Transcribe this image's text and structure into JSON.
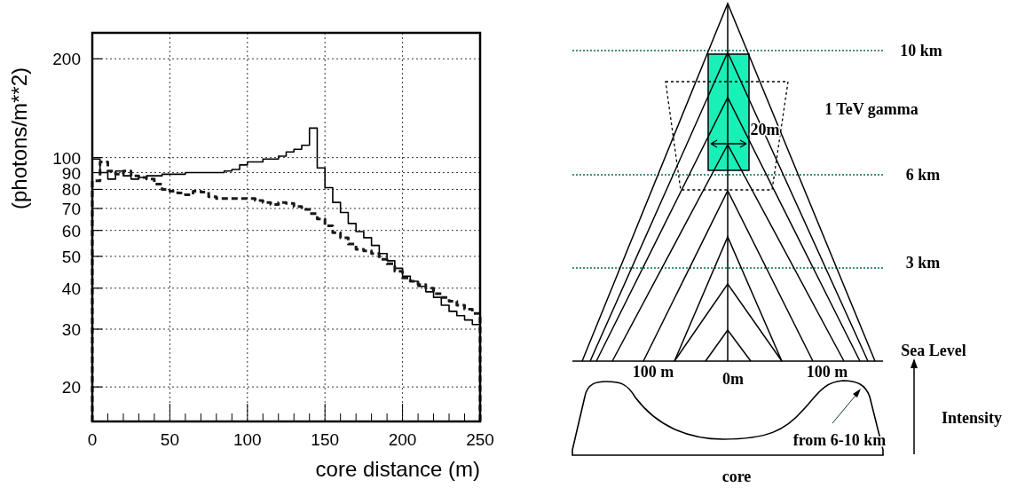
{
  "chart_data": [
    {
      "type": "histogram",
      "xlabel": "core distance (m)",
      "ylabel": "(photons/m**2)",
      "log": "y",
      "grid": true,
      "bins": [
        0,
        5,
        10,
        15,
        20,
        25,
        30,
        35,
        40,
        45,
        50,
        55,
        60,
        65,
        70,
        75,
        80,
        85,
        90,
        95,
        100,
        105,
        110,
        115,
        120,
        125,
        130,
        135,
        140,
        145,
        150,
        155,
        160,
        165,
        170,
        175,
        180,
        185,
        190,
        195,
        200,
        205,
        210,
        215,
        220,
        225,
        230,
        235,
        240,
        245,
        250
      ],
      "series": [
        {
          "line_style": "solid",
          "color": "#000000",
          "values": [
            99,
            90,
            86,
            91,
            88,
            86,
            87,
            88,
            88,
            89,
            89,
            89,
            90,
            90,
            90,
            90,
            90,
            91,
            92,
            95,
            97,
            97,
            99,
            99,
            101,
            104,
            106,
            109,
            123,
            93,
            81,
            73,
            68,
            63,
            59.5,
            57,
            54,
            51,
            48.5,
            46,
            43.5,
            42,
            40.5,
            39,
            37.5,
            35.5,
            34,
            33,
            32,
            31
          ]
        },
        {
          "line_style": "dashed",
          "color": "#1a1a1a",
          "values": [
            85,
            97,
            91,
            89,
            91,
            88,
            87,
            86,
            83,
            80,
            79,
            78,
            77,
            79,
            78.5,
            76,
            75,
            75,
            75,
            75,
            75,
            74,
            73,
            72,
            73,
            72.5,
            71,
            69.5,
            67.5,
            65,
            62,
            59,
            57,
            54.5,
            52.5,
            52,
            51,
            49,
            47.5,
            45,
            43,
            42,
            41,
            40,
            38.5,
            37.5,
            36.5,
            35.5,
            34.5,
            33.5
          ]
        }
      ],
      "xlim": [
        0,
        250
      ],
      "ylim": [
        15.7,
        240
      ],
      "xticks": [
        0,
        {
          "value": 10,
          "label": null
        },
        {
          "value": 20,
          "label": null
        },
        {
          "value": 30,
          "label": null
        },
        {
          "value": 40,
          "label": null
        },
        50,
        {
          "value": 60,
          "label": null
        },
        {
          "value": 70,
          "label": null
        },
        {
          "value": 80,
          "label": null
        },
        {
          "value": 90,
          "label": null
        },
        100,
        {
          "value": 110,
          "label": null
        },
        {
          "value": 120,
          "label": null
        },
        {
          "value": 130,
          "label": null
        },
        {
          "value": 140,
          "label": null
        },
        150,
        {
          "value": 160,
          "label": null
        },
        {
          "value": 170,
          "label": null
        },
        {
          "value": 180,
          "label": null
        },
        {
          "value": 190,
          "label": null
        },
        200,
        {
          "value": 210,
          "label": null
        },
        {
          "value": 220,
          "label": null
        },
        {
          "value": 230,
          "label": null
        },
        {
          "value": 240,
          "label": null
        },
        250
      ],
      "yticks": [
        20,
        30,
        40,
        50,
        60,
        70,
        80,
        90,
        100,
        200
      ]
    },
    {
      "type": "other",
      "annotations": [
        "10 km",
        "1 TeV gamma",
        "20m",
        "6 km",
        "3 km",
        "Sea Level",
        "100 m",
        "0m",
        "100 m",
        "Intensity",
        "from 6-10 km",
        "core"
      ]
    }
  ]
}
